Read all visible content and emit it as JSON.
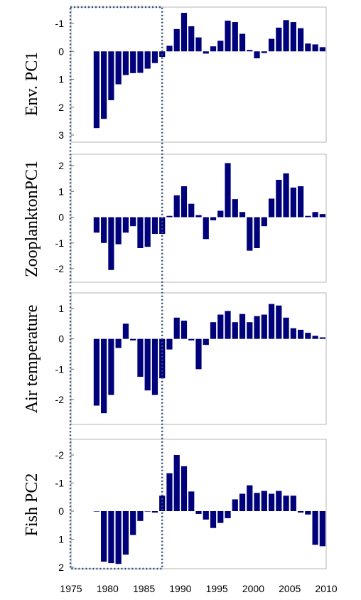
{
  "chart_data": {
    "type": "bar",
    "x_axis": {
      "range": [
        1975,
        2010
      ],
      "tick_labels": [
        "1975",
        "1980",
        "1985",
        "1990",
        "1995",
        "2000",
        "2005",
        "2010"
      ]
    },
    "bar_color": "#00007a",
    "highlight_box": {
      "style": "dotted",
      "color": "#2f4f7f",
      "x_range": [
        1975,
        1987.5
      ]
    },
    "panels": [
      {
        "ylabel": "Env. PC1",
        "inverted_y": true,
        "ylim": [
          -1.5,
          3
        ],
        "tick_labels": [
          "-1",
          "0",
          "1",
          "2",
          "3"
        ],
        "tick_values": [
          -1,
          0,
          1,
          2,
          3
        ],
        "x": [
          1978,
          1979,
          1980,
          1981,
          1982,
          1983,
          1984,
          1985,
          1986,
          1987,
          1988,
          1989,
          1990,
          1991,
          1992,
          1993,
          1994,
          1995,
          1996,
          1997,
          1998,
          1999,
          2000,
          2001,
          2002,
          2003,
          2004,
          2005,
          2006,
          2007,
          2008,
          2009
        ],
        "values": [
          2.75,
          2.42,
          1.75,
          1.18,
          0.85,
          0.78,
          0.77,
          0.62,
          0.42,
          0.2,
          -0.2,
          -0.8,
          -1.38,
          -0.9,
          -0.5,
          0.08,
          -0.18,
          -0.38,
          -1.1,
          -1.05,
          -0.63,
          -0.05,
          0.25,
          0.06,
          -0.45,
          -0.85,
          -1.12,
          -1.05,
          -0.83,
          -0.28,
          -0.25,
          -0.15
        ]
      },
      {
        "ylabel": "ZooplanktonPC1",
        "inverted_y": false,
        "ylim": [
          -2.5,
          2.3
        ],
        "tick_labels": [
          "2",
          "1",
          "0",
          "-1",
          "-2"
        ],
        "tick_values": [
          2,
          1,
          0,
          -1,
          -2
        ],
        "x": [
          1978,
          1979,
          1980,
          1981,
          1982,
          1983,
          1984,
          1985,
          1986,
          1987,
          1988,
          1989,
          1990,
          1991,
          1992,
          1993,
          1994,
          1995,
          1996,
          1997,
          1998,
          1999,
          2000,
          2001,
          2002,
          2003,
          2004,
          2005,
          2006,
          2007,
          2008,
          2009
        ],
        "values": [
          -0.6,
          -1.0,
          -2.05,
          -1.05,
          -0.6,
          -0.35,
          -1.2,
          -1.15,
          -0.65,
          -0.65,
          0.05,
          0.85,
          1.2,
          0.52,
          0.08,
          -0.85,
          -0.12,
          0.25,
          2.1,
          0.7,
          0.2,
          -1.3,
          -1.2,
          -0.35,
          0.72,
          1.45,
          1.7,
          1.15,
          1.2,
          0.05,
          0.2,
          0.12
        ]
      },
      {
        "ylabel": "Air temperature",
        "inverted_y": false,
        "ylim": [
          -2.8,
          1.5
        ],
        "tick_labels": [
          "1",
          "0",
          "-1",
          "-2"
        ],
        "tick_values": [
          1,
          0,
          -1,
          -2
        ],
        "x": [
          1978,
          1979,
          1980,
          1981,
          1982,
          1983,
          1984,
          1985,
          1986,
          1987,
          1988,
          1989,
          1990,
          1991,
          1992,
          1993,
          1994,
          1995,
          1996,
          1997,
          1998,
          1999,
          2000,
          2001,
          2002,
          2003,
          2004,
          2005,
          2006,
          2007,
          2008,
          2009
        ],
        "values": [
          -2.2,
          -2.45,
          -1.85,
          -0.3,
          0.5,
          -0.05,
          -1.25,
          -1.7,
          -1.85,
          -1.3,
          -0.35,
          0.7,
          0.6,
          -0.05,
          -1.0,
          -0.2,
          0.55,
          0.8,
          0.92,
          0.55,
          0.82,
          0.55,
          0.75,
          0.8,
          1.15,
          1.1,
          0.7,
          0.35,
          0.3,
          0.2,
          0.1,
          0.05
        ]
      },
      {
        "ylabel": "Fish PC2",
        "inverted_y": true,
        "ylim": [
          -2.5,
          2
        ],
        "tick_labels": [
          "-2",
          "-1",
          "0",
          "1",
          "2"
        ],
        "tick_values": [
          -2,
          -1,
          0,
          1,
          2
        ],
        "x": [
          1978,
          1979,
          1980,
          1981,
          1982,
          1983,
          1984,
          1985,
          1986,
          1987,
          1988,
          1989,
          1990,
          1991,
          1992,
          1993,
          1994,
          1995,
          1996,
          1997,
          1998,
          1999,
          2000,
          2001,
          2002,
          2003,
          2004,
          2005,
          2006,
          2007,
          2008,
          2009
        ],
        "values": [
          0,
          1.8,
          1.85,
          1.88,
          1.55,
          0.85,
          0.35,
          0,
          0.05,
          -0.55,
          -1.35,
          -2.0,
          -1.6,
          -0.7,
          0.1,
          0.3,
          0.6,
          0.42,
          0.25,
          -0.42,
          -0.62,
          -0.92,
          -0.65,
          -0.72,
          -0.62,
          -0.72,
          -0.55,
          -0.55,
          0.05,
          0.12,
          1.2,
          1.25
        ]
      }
    ]
  }
}
